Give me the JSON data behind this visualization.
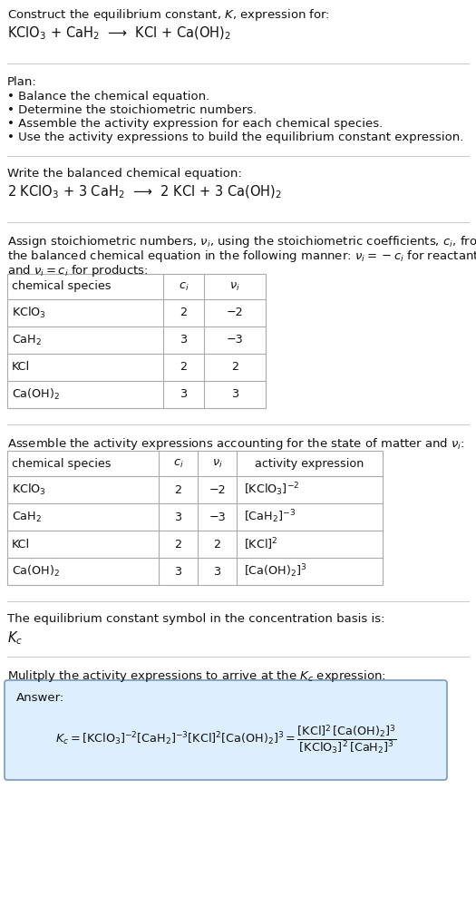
{
  "title_line1": "Construct the equilibrium constant, $K$, expression for:",
  "reaction_unbalanced": "KClO$_3$ + CaH$_2$  ⟶  KCl + Ca(OH)$_2$",
  "plan_header": "Plan:",
  "plan_items": [
    "• Balance the chemical equation.",
    "• Determine the stoichiometric numbers.",
    "• Assemble the activity expression for each chemical species.",
    "• Use the activity expressions to build the equilibrium constant expression."
  ],
  "balanced_header": "Write the balanced chemical equation:",
  "reaction_balanced": "2 KClO$_3$ + 3 CaH$_2$  ⟶  2 KCl + 3 Ca(OH)$_2$",
  "stoich_intro_1": "Assign stoichiometric numbers, $\\nu_i$, using the stoichiometric coefficients, $c_i$, from",
  "stoich_intro_2": "the balanced chemical equation in the following manner: $\\nu_i = -c_i$ for reactants",
  "stoich_intro_3": "and $\\nu_i = c_i$ for products:",
  "table1_headers": [
    "chemical species",
    "$c_i$",
    "$\\nu_i$"
  ],
  "table1_data": [
    [
      "KClO$_3$",
      "2",
      "−2"
    ],
    [
      "CaH$_2$",
      "3",
      "−3"
    ],
    [
      "KCl",
      "2",
      "2"
    ],
    [
      "Ca(OH)$_2$",
      "3",
      "3"
    ]
  ],
  "activity_intro": "Assemble the activity expressions accounting for the state of matter and $\\nu_i$:",
  "table2_headers": [
    "chemical species",
    "$c_i$",
    "$\\nu_i$",
    "activity expression"
  ],
  "table2_data": [
    [
      "KClO$_3$",
      "2",
      "−2",
      "[KClO$_3$]$^{-2}$"
    ],
    [
      "CaH$_2$",
      "3",
      "−3",
      "[CaH$_2$]$^{-3}$"
    ],
    [
      "KCl",
      "2",
      "2",
      "[KCl]$^2$"
    ],
    [
      "Ca(OH)$_2$",
      "3",
      "3",
      "[Ca(OH)$_2$]$^3$"
    ]
  ],
  "kc_text": "The equilibrium constant symbol in the concentration basis is:",
  "kc_symbol": "$K_c$",
  "multiply_text": "Mulitply the activity expressions to arrive at the $K_c$ expression:",
  "answer_label": "Answer:",
  "answer_box_facecolor": "#ddeeff",
  "answer_box_edgecolor": "#7799bb",
  "sep_color": "#cccccc",
  "table_line_color": "#aaaaaa",
  "bg_color": "#ffffff",
  "text_color": "#111111",
  "fs": 9.5,
  "fs_small": 9.2,
  "fs_reaction": 10.5
}
